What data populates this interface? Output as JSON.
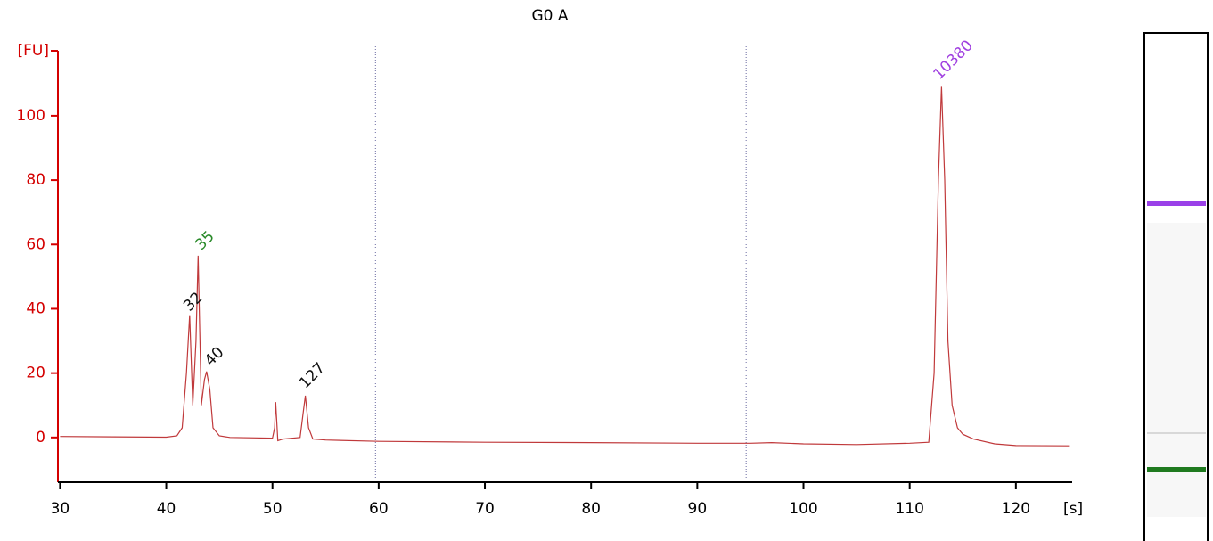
{
  "chart_data": {
    "type": "line",
    "title": "G0 A",
    "x_label": "[s]",
    "y_label": "[FU]",
    "color": "#c0393b",
    "axis_color": "#d40000",
    "x": [
      30,
      35,
      40,
      41,
      41.5,
      41.9,
      42.2,
      42.5,
      42.8,
      43.0,
      43.3,
      43.6,
      43.8,
      44.1,
      44.4,
      45,
      46,
      50,
      50.2,
      50.3,
      50.5,
      51,
      52.6,
      52.9,
      53.1,
      53.4,
      53.8,
      55,
      60,
      70,
      80,
      90,
      95,
      97,
      100,
      105,
      110,
      111.8,
      112.3,
      112.7,
      113,
      113.3,
      113.6,
      114,
      114.5,
      115,
      116,
      118,
      120,
      125
    ],
    "values": [
      0.3,
      0.2,
      0.1,
      0.5,
      3,
      20,
      38,
      10,
      30,
      56.5,
      10,
      18,
      20.5,
      15,
      3,
      0.5,
      0,
      -0.2,
      3,
      11,
      -1,
      -0.5,
      0,
      8,
      13,
      3,
      -0.5,
      -0.8,
      -1.2,
      -1.5,
      -1.6,
      -1.8,
      -1.8,
      -1.6,
      -2,
      -2.2,
      -1.8,
      -1.5,
      20,
      80,
      109,
      80,
      30,
      10,
      3,
      1,
      -0.5,
      -2,
      -2.5,
      -2.6
    ],
    "xlim": [
      29.8,
      125.3
    ],
    "ylim": [
      -13.9,
      120.2
    ],
    "xticks": [
      30,
      40,
      50,
      60,
      70,
      80,
      90,
      100,
      110,
      120
    ],
    "yticks": [
      0,
      20,
      40,
      60,
      80,
      100
    ],
    "vlines": [
      59.7,
      94.6
    ],
    "annotations": [
      {
        "text": "35",
        "x": 43.0,
        "y": 59,
        "color": "#2a8a2a"
      },
      {
        "text": "32",
        "x": 41.9,
        "y": 40,
        "color": "#111111"
      },
      {
        "text": "40",
        "x": 43.9,
        "y": 23,
        "color": "#111111"
      },
      {
        "text": "127",
        "x": 52.8,
        "y": 16,
        "color": "#111111"
      },
      {
        "text": "10380",
        "x": 112.5,
        "y": 112,
        "color": "#a040e0"
      }
    ]
  }
}
